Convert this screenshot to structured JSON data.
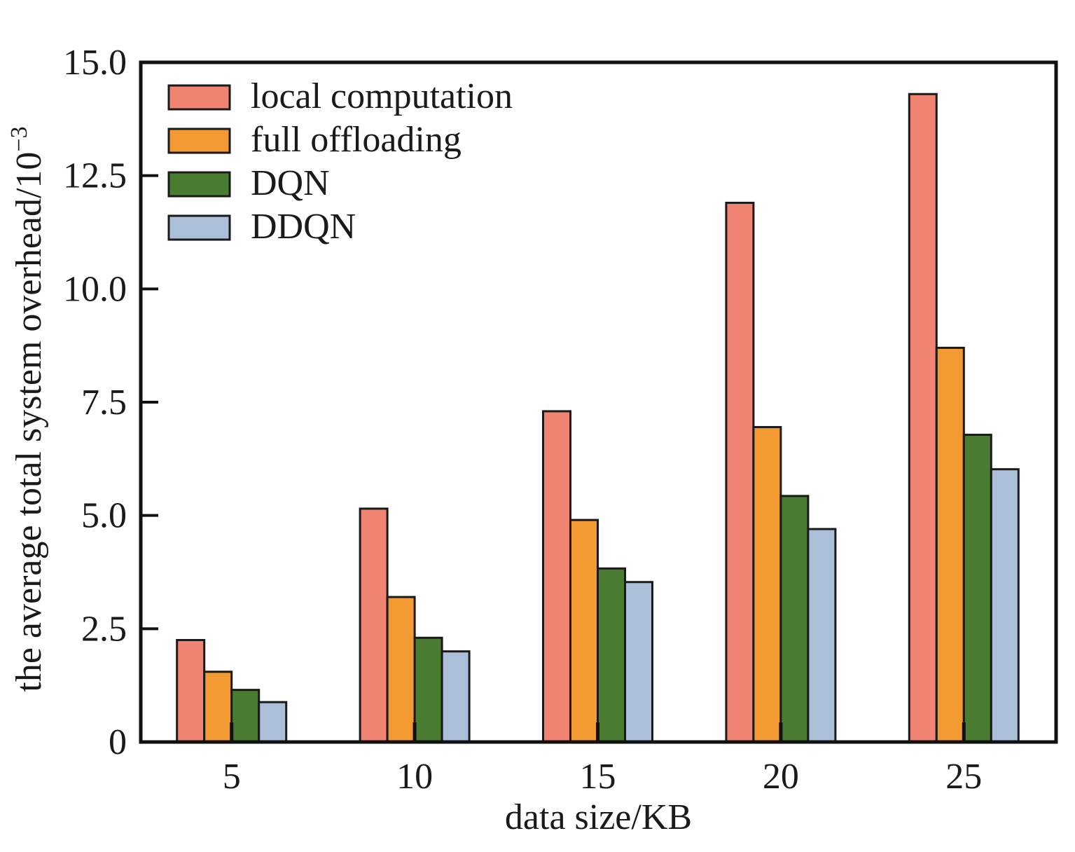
{
  "chart_data": {
    "type": "bar",
    "xlabel": "data size/KB",
    "ylabel": "the average total system overhead/10",
    "ylabel_superscript": "−3",
    "categories": [
      "5",
      "10",
      "15",
      "20",
      "25"
    ],
    "ylim": [
      0,
      15
    ],
    "yticks": [
      0,
      2.5,
      5,
      7.5,
      10,
      12.5,
      15
    ],
    "ytick_labels": [
      "0",
      "2.5",
      "5.0",
      "7.5",
      "10.0",
      "12.5",
      "15.0"
    ],
    "grid": false,
    "legend_position": "top-left",
    "series": [
      {
        "name": "local computation",
        "color": "#f08372",
        "values": [
          2.25,
          5.15,
          7.3,
          11.9,
          14.3
        ]
      },
      {
        "name": "full offloading",
        "color": "#f39a33",
        "values": [
          1.55,
          3.2,
          4.9,
          6.95,
          8.7
        ]
      },
      {
        "name": "DQN",
        "color": "#4a7d32",
        "values": [
          1.15,
          2.3,
          3.83,
          5.43,
          6.78
        ]
      },
      {
        "name": "DDQN",
        "color": "#abbfd9",
        "values": [
          0.88,
          2.0,
          3.53,
          4.7,
          6.02
        ]
      }
    ]
  }
}
